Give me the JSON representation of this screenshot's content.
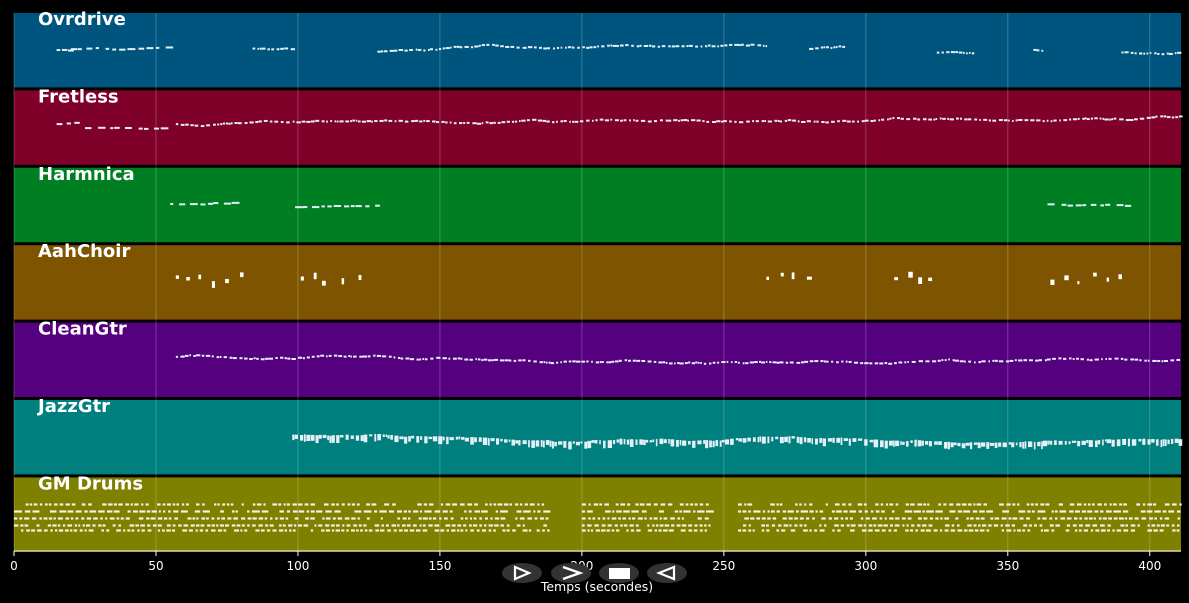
{
  "xaxis": {
    "label": "Temps (secondes)",
    "range": [
      0,
      411
    ],
    "ticks": [
      0,
      50,
      100,
      150,
      200,
      250,
      300,
      350,
      400
    ]
  },
  "tracks": [
    {
      "name": "Ovrdrive",
      "color": "#00557f",
      "segments": [
        [
          15,
          20,
          "sparse"
        ],
        [
          20,
          55,
          "sparse"
        ],
        [
          84,
          99,
          "dense"
        ],
        [
          128,
          265,
          "dense"
        ],
        [
          280,
          293,
          "dense"
        ],
        [
          325,
          338,
          "dense"
        ],
        [
          359,
          362,
          "dense"
        ],
        [
          390,
          411,
          "dense"
        ]
      ]
    },
    {
      "name": "Fretless",
      "color": "#7f0029",
      "segments": [
        [
          15,
          22,
          "sparse"
        ],
        [
          25,
          55,
          "sparse"
        ],
        [
          57,
          411,
          "dense"
        ]
      ]
    },
    {
      "name": "Harmnica",
      "color": "#007f22",
      "segments": [
        [
          55,
          80,
          "sparse"
        ],
        [
          99,
          128,
          "sparse"
        ],
        [
          364,
          393,
          "sparse"
        ]
      ]
    },
    {
      "name": "AahChoir",
      "color": "#7f5400",
      "segments": [
        [
          57,
          82,
          "blocks"
        ],
        [
          101,
          126,
          "blocks"
        ],
        [
          265,
          280,
          "blocks"
        ],
        [
          310,
          325,
          "blocks"
        ],
        [
          365,
          390,
          "blocks"
        ]
      ]
    },
    {
      "name": "CleanGtr",
      "color": "#55007f",
      "segments": [
        [
          57,
          99,
          "dense"
        ],
        [
          100,
          411,
          "dense"
        ]
      ]
    },
    {
      "name": "JazzGtr",
      "color": "#007f7f",
      "segments": [
        [
          98,
          411,
          "heavy"
        ]
      ]
    },
    {
      "name": "GM Drums",
      "color": "#7f7f00",
      "segments": [
        [
          0,
          188,
          "drums"
        ],
        [
          200,
          245,
          "drums"
        ],
        [
          255,
          411,
          "drums"
        ]
      ]
    }
  ],
  "controls": [
    {
      "name": "play-button",
      "icon": "play-icon"
    },
    {
      "name": "fast-forward-button",
      "icon": "forward-icon"
    },
    {
      "name": "stop-button",
      "icon": "stop-icon"
    },
    {
      "name": "rewind-button",
      "icon": "rewind-icon"
    }
  ]
}
